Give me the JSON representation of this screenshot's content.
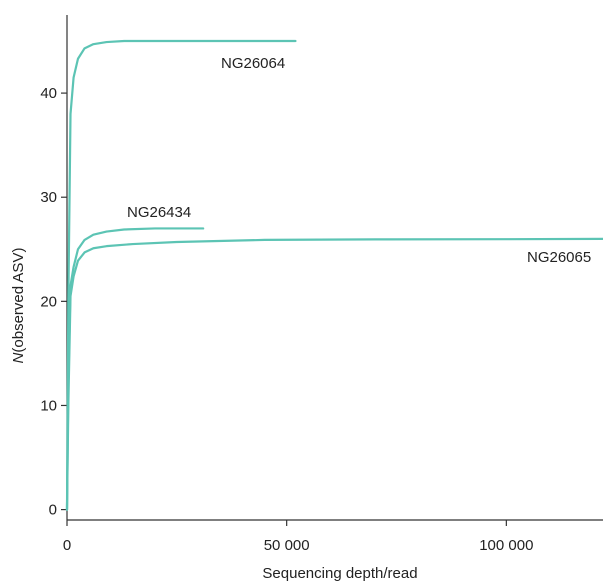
{
  "chart_data": {
    "type": "line",
    "title": "",
    "xlabel": "Sequencing depth/read",
    "ylabel_italic": "N",
    "ylabel_rest": "(observed ASV)",
    "xlim": [
      0,
      122000
    ],
    "ylim": [
      -1,
      47.5
    ],
    "x_ticks": [
      {
        "value": 0,
        "label": "0"
      },
      {
        "value": 50000,
        "label": "50 000"
      },
      {
        "value": 100000,
        "label": "100 000"
      }
    ],
    "y_ticks": [
      {
        "value": 0,
        "label": "0"
      },
      {
        "value": 10,
        "label": "10"
      },
      {
        "value": 20,
        "label": "20"
      },
      {
        "value": 30,
        "label": "30"
      },
      {
        "value": 40,
        "label": "40"
      }
    ],
    "grid": false,
    "line_color": "#5cc4b4",
    "series": [
      {
        "name": "NG26064",
        "x": [
          0,
          300,
          800,
          1500,
          2500,
          4000,
          6000,
          9000,
          13000,
          20000,
          30000,
          42000,
          52000
        ],
        "y": [
          0,
          20,
          38,
          41.5,
          43.3,
          44.3,
          44.7,
          44.9,
          45,
          45,
          45,
          45,
          45
        ]
      },
      {
        "name": "NG26434",
        "x": [
          0,
          300,
          800,
          1500,
          2500,
          4000,
          6000,
          9000,
          13000,
          20000,
          26000,
          31000
        ],
        "y": [
          0,
          12,
          21.5,
          23.3,
          25,
          25.9,
          26.4,
          26.7,
          26.9,
          27,
          27,
          27
        ]
      },
      {
        "name": "NG26065",
        "x": [
          0,
          300,
          800,
          1500,
          2500,
          4000,
          6000,
          9000,
          15000,
          25000,
          45000,
          70000,
          100000,
          122000
        ],
        "y": [
          0,
          10,
          20.5,
          22.4,
          23.9,
          24.7,
          25.1,
          25.3,
          25.5,
          25.7,
          25.9,
          25.95,
          25.97,
          26
        ]
      }
    ]
  }
}
